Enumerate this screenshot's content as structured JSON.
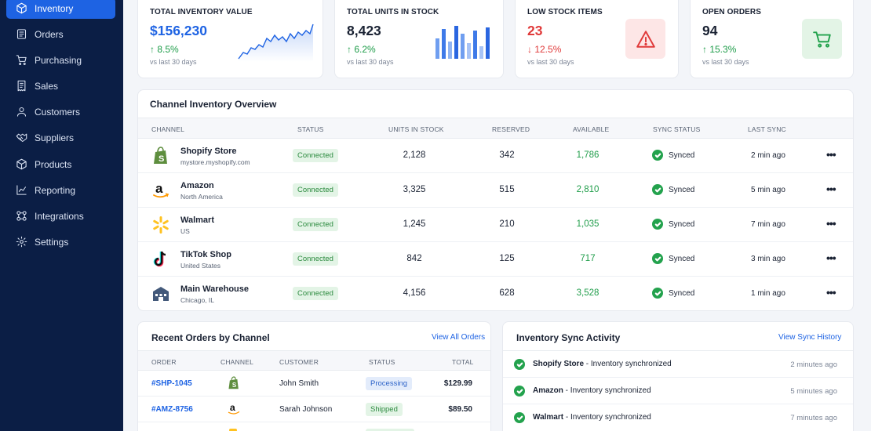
{
  "sidebar": {
    "items": [
      {
        "label": "Inventory",
        "icon": "box-icon",
        "active": true
      },
      {
        "label": "Orders",
        "icon": "orders-icon"
      },
      {
        "label": "Purchasing",
        "icon": "cart-icon"
      },
      {
        "label": "Sales",
        "icon": "receipt-icon"
      },
      {
        "label": "Customers",
        "icon": "user-icon"
      },
      {
        "label": "Suppliers",
        "icon": "handshake-icon"
      },
      {
        "label": "Products",
        "icon": "cube-icon"
      },
      {
        "label": "Reporting",
        "icon": "chart-icon"
      },
      {
        "label": "Integrations",
        "icon": "integrations-icon"
      },
      {
        "label": "Settings",
        "icon": "gear-icon"
      }
    ]
  },
  "kpis": [
    {
      "label": "TOTAL INVENTORY VALUE",
      "value": "$156,230",
      "change": "↑ 8.5%",
      "sub": "vs last 30 days"
    },
    {
      "label": "TOTAL UNITS IN STOCK",
      "value": "8,423",
      "change": "↑ 6.2%",
      "sub": "vs last 30 days"
    },
    {
      "label": "LOW STOCK ITEMS",
      "value": "23",
      "change": "↓ 12.5%",
      "sub": "vs last 30 days"
    },
    {
      "label": "OPEN ORDERS",
      "value": "94",
      "change": "↑ 15.3%",
      "sub": "vs last 30 days"
    }
  ],
  "channel_overview": {
    "title": "Channel Inventory Overview",
    "headers": [
      "CHANNEL",
      "STATUS",
      "UNITS IN STOCK",
      "RESERVED",
      "AVAILABLE",
      "SYNC STATUS",
      "LAST SYNC"
    ],
    "rows": [
      {
        "name": "Shopify Store",
        "sub": "mystore.myshopify.com",
        "status": "Connected",
        "units": "2,128",
        "reserved": "342",
        "available": "1,786",
        "sync": "Synced",
        "last": "2 min ago",
        "logo": "shopify-icon"
      },
      {
        "name": "Amazon",
        "sub": "North America",
        "status": "Connected",
        "units": "3,325",
        "reserved": "515",
        "available": "2,810",
        "sync": "Synced",
        "last": "5 min ago",
        "logo": "amazon-icon"
      },
      {
        "name": "Walmart",
        "sub": "US",
        "status": "Connected",
        "units": "1,245",
        "reserved": "210",
        "available": "1,035",
        "sync": "Synced",
        "last": "7 min ago",
        "logo": "walmart-icon"
      },
      {
        "name": "TikTok Shop",
        "sub": "United States",
        "status": "Connected",
        "units": "842",
        "reserved": "125",
        "available": "717",
        "sync": "Synced",
        "last": "3 min ago",
        "logo": "tiktok-icon"
      },
      {
        "name": "Main Warehouse",
        "sub": "Chicago, IL",
        "status": "Connected",
        "units": "4,156",
        "reserved": "628",
        "available": "3,528",
        "sync": "Synced",
        "last": "1 min ago",
        "logo": "warehouse-icon"
      }
    ],
    "more": "•••"
  },
  "recent_orders": {
    "title": "Recent Orders by Channel",
    "view_all": "View All Orders",
    "headers": [
      "ORDER",
      "CHANNEL",
      "CUSTOMER",
      "STATUS",
      "TOTAL"
    ],
    "rows": [
      {
        "order": "#SHP-1045",
        "channel": "shopify-icon",
        "customer": "John Smith",
        "status": "Processing",
        "total": "$129.99"
      },
      {
        "order": "#AMZ-8756",
        "channel": "amazon-icon",
        "customer": "Sarah Johnson",
        "status": "Shipped",
        "total": "$89.50"
      }
    ]
  },
  "sync_activity": {
    "title": "Inventory Sync Activity",
    "view_history": "View Sync History",
    "items": [
      {
        "source": "Shopify Store",
        "text": " - Inventory synchronized",
        "time": "2 minutes ago"
      },
      {
        "source": "Amazon",
        "text": " - Inventory synchronized",
        "time": "5 minutes ago"
      },
      {
        "source": "Walmart",
        "text": " - Inventory synchronized",
        "time": "7 minutes ago"
      }
    ]
  },
  "colors": {
    "sidebar_bg": "#0b1e45",
    "accent": "#1e63e3",
    "positive": "#1f9d4a",
    "negative": "#e03a3a"
  }
}
